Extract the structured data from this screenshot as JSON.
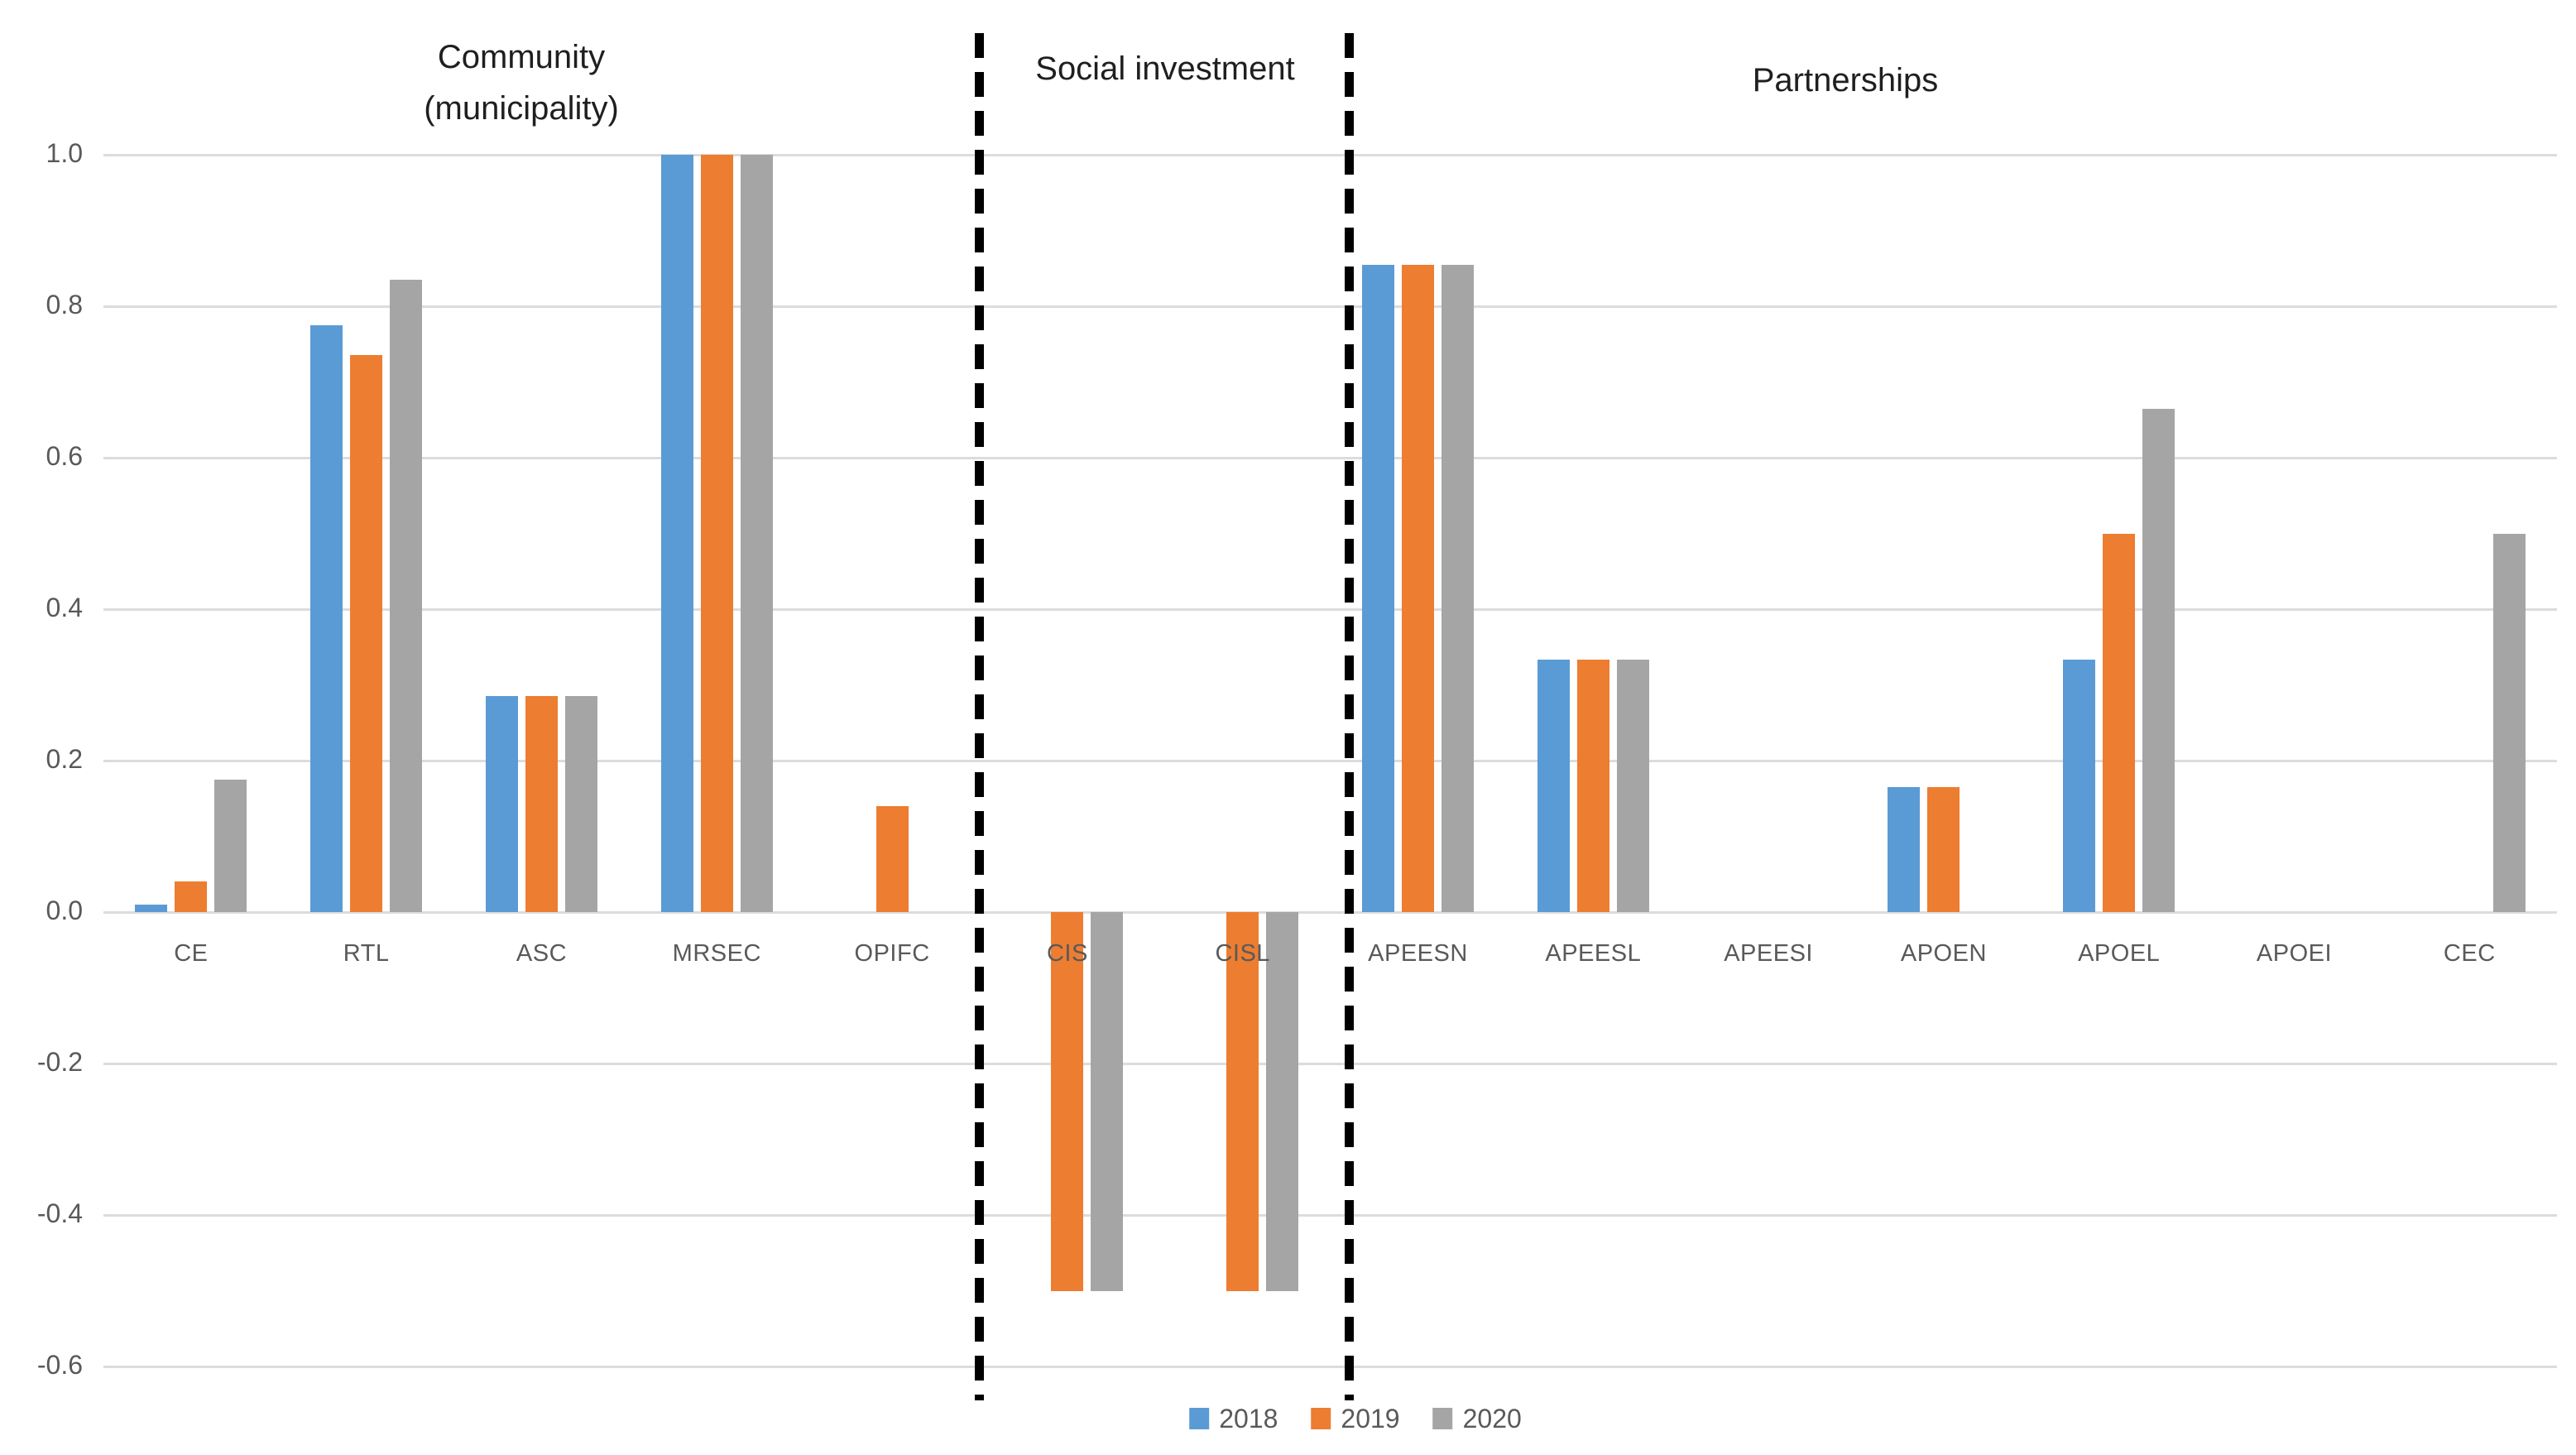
{
  "chart_data": {
    "type": "bar",
    "title": "",
    "categories": [
      "CE",
      "RTL",
      "ASC",
      "MRSEC",
      "OPIFC",
      "CIS",
      "CISL",
      "APEESN",
      "APEESL",
      "APEESI",
      "APOEN",
      "APOEL",
      "APOEI",
      "CEC"
    ],
    "series": [
      {
        "name": "2018",
        "color": "#5B9BD5",
        "values": [
          0.01,
          0.775,
          0.285,
          1.0,
          null,
          null,
          null,
          0.855,
          0.333,
          null,
          0.165,
          0.333,
          null,
          null
        ]
      },
      {
        "name": "2019",
        "color": "#ED7D31",
        "values": [
          0.04,
          0.735,
          0.285,
          1.0,
          0.14,
          -0.5,
          -0.5,
          0.855,
          0.333,
          null,
          0.165,
          0.5,
          null,
          null
        ]
      },
      {
        "name": "2020",
        "color": "#A5A5A5",
        "values": [
          0.175,
          0.835,
          0.285,
          1.0,
          null,
          -0.5,
          -0.5,
          0.855,
          0.333,
          null,
          null,
          0.665,
          null,
          0.5
        ]
      }
    ],
    "sections": [
      {
        "title": "Community\n(municipality)",
        "categories": [
          "CE",
          "RTL",
          "ASC",
          "MRSEC",
          "OPIFC"
        ]
      },
      {
        "title": "Social investment",
        "categories": [
          "CIS",
          "CISL"
        ]
      },
      {
        "title": "Partnerships",
        "categories": [
          "APEESN",
          "APEESL",
          "APEESI",
          "APOEN",
          "APOEL",
          "APOEI",
          "CEC"
        ]
      }
    ],
    "y_axis": {
      "min": -0.6,
      "max": 1.0,
      "step": 0.2,
      "tick_labels": [
        "1.0",
        "0.8",
        "0.6",
        "0.4",
        "0.2",
        "0.0",
        "-0.2",
        "-0.4",
        "-0.6"
      ]
    },
    "xlabel": "",
    "ylabel": "",
    "grid": true,
    "legend_position": "bottom",
    "legend": [
      "2018",
      "2019",
      "2020"
    ],
    "separators": "dashed-vertical"
  },
  "colors": {
    "series_2018": "#5B9BD5",
    "series_2019": "#ED7D31",
    "series_2020": "#A5A5A5",
    "gridline": "#dcdcdc",
    "axis_label": "#595959",
    "section_title": "#1f1f1f",
    "separator": "#000000",
    "background": "#ffffff"
  }
}
